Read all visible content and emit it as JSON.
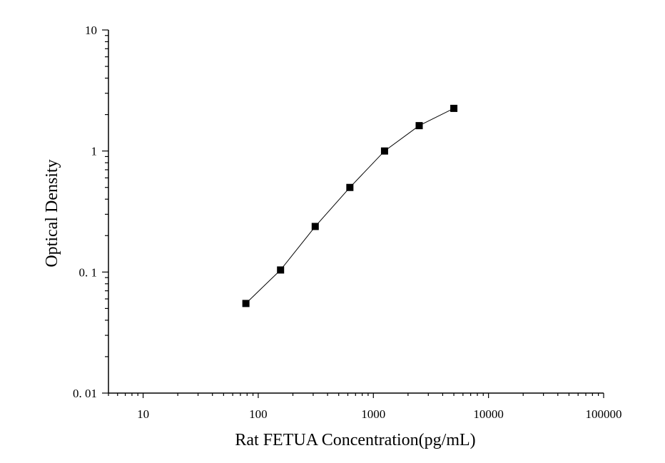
{
  "chart_data": {
    "type": "scatter",
    "xlabel": "Rat FETUA Concentration(pg/mL)",
    "ylabel": "Optical Density",
    "x_scale": "log",
    "y_scale": "log",
    "xlim": [
      5,
      100000
    ],
    "ylim": [
      0.01,
      10
    ],
    "x_ticks": [
      {
        "value": 10,
        "label": "10"
      },
      {
        "value": 100,
        "label": "100"
      },
      {
        "value": 1000,
        "label": "1000"
      },
      {
        "value": 10000,
        "label": "10000"
      },
      {
        "value": 100000,
        "label": "100000"
      }
    ],
    "y_ticks": [
      {
        "value": 0.01,
        "label": "0. 01"
      },
      {
        "value": 0.1,
        "label": "0. 1"
      },
      {
        "value": 1,
        "label": "1"
      },
      {
        "value": 10,
        "label": "10"
      }
    ],
    "grid": false,
    "legend": "none",
    "series": [
      {
        "marker": "square",
        "line": true,
        "color": "#000000",
        "points": [
          {
            "x": 78.125,
            "y": 0.055
          },
          {
            "x": 156.25,
            "y": 0.104
          },
          {
            "x": 312.5,
            "y": 0.238
          },
          {
            "x": 625,
            "y": 0.5
          },
          {
            "x": 1250,
            "y": 1.0
          },
          {
            "x": 2500,
            "y": 1.62
          },
          {
            "x": 5000,
            "y": 2.25
          }
        ]
      }
    ]
  }
}
